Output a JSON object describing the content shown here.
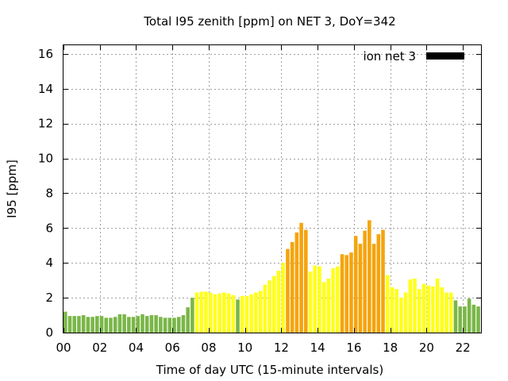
{
  "chart_data": {
    "type": "bar",
    "title": "Total I95 zenith [ppm] on NET 3, DoY=342",
    "xlabel": "Time of day UTC (15-minute intervals)",
    "ylabel": "I95 [ppm]",
    "xlim": [
      0,
      23
    ],
    "ylim": [
      0,
      16.5
    ],
    "xticks": [
      "00",
      "02",
      "04",
      "06",
      "08",
      "10",
      "12",
      "14",
      "16",
      "18",
      "20",
      "22"
    ],
    "yticks": [
      "0",
      "2",
      "4",
      "6",
      "8",
      "10",
      "12",
      "14",
      "16"
    ],
    "grid": true,
    "legend": {
      "position": "top-right",
      "label": "ion net 3",
      "color": "#000000"
    },
    "colors": {
      "low": "#7ab648",
      "medium": "#ffff1a",
      "high": "#f5a40c"
    },
    "series": [
      {
        "bin_hours": 0.25,
        "values": [
          1.2,
          0.95,
          0.95,
          0.95,
          1.0,
          0.9,
          0.9,
          0.95,
          0.95,
          0.85,
          0.85,
          0.9,
          1.05,
          1.05,
          0.9,
          0.9,
          0.95,
          1.05,
          0.95,
          1.0,
          1.0,
          0.9,
          0.85,
          0.85,
          0.85,
          0.9,
          1.0,
          1.45,
          2.0,
          2.3,
          2.35,
          2.35,
          2.3,
          2.2,
          2.25,
          2.3,
          2.25,
          2.15,
          1.9,
          2.1,
          2.1,
          2.2,
          2.3,
          2.4,
          2.75,
          3.0,
          3.25,
          3.55,
          4.0,
          4.8,
          5.2,
          5.75,
          6.3,
          5.9,
          3.5,
          3.85,
          3.8,
          2.9,
          3.1,
          3.7,
          3.8,
          4.5,
          4.45,
          4.6,
          5.55,
          5.1,
          5.85,
          6.45,
          5.1,
          5.65,
          5.9,
          3.3,
          2.6,
          2.5,
          2.0,
          2.3,
          3.05,
          3.1,
          2.5,
          2.8,
          2.7,
          2.65,
          3.1,
          2.6,
          2.3,
          2.3,
          1.85,
          1.5,
          1.5,
          1.95,
          1.6,
          1.5,
          1.8
        ],
        "categories": [
          "low",
          "low",
          "low",
          "low",
          "low",
          "low",
          "low",
          "low",
          "low",
          "low",
          "low",
          "low",
          "low",
          "low",
          "low",
          "low",
          "low",
          "low",
          "low",
          "low",
          "low",
          "low",
          "low",
          "low",
          "low",
          "low",
          "low",
          "low",
          "low",
          "medium",
          "medium",
          "medium",
          "medium",
          "medium",
          "medium",
          "medium",
          "medium",
          "medium",
          "low",
          "medium",
          "medium",
          "medium",
          "medium",
          "medium",
          "medium",
          "medium",
          "medium",
          "medium",
          "medium",
          "high",
          "high",
          "high",
          "high",
          "high",
          "medium",
          "medium",
          "medium",
          "medium",
          "medium",
          "medium",
          "medium",
          "high",
          "high",
          "high",
          "high",
          "high",
          "high",
          "high",
          "high",
          "high",
          "high",
          "medium",
          "medium",
          "medium",
          "medium",
          "medium",
          "medium",
          "medium",
          "medium",
          "medium",
          "medium",
          "medium",
          "medium",
          "medium",
          "medium",
          "medium",
          "low",
          "low",
          "low",
          "low",
          "low",
          "low",
          "low"
        ]
      }
    ]
  }
}
